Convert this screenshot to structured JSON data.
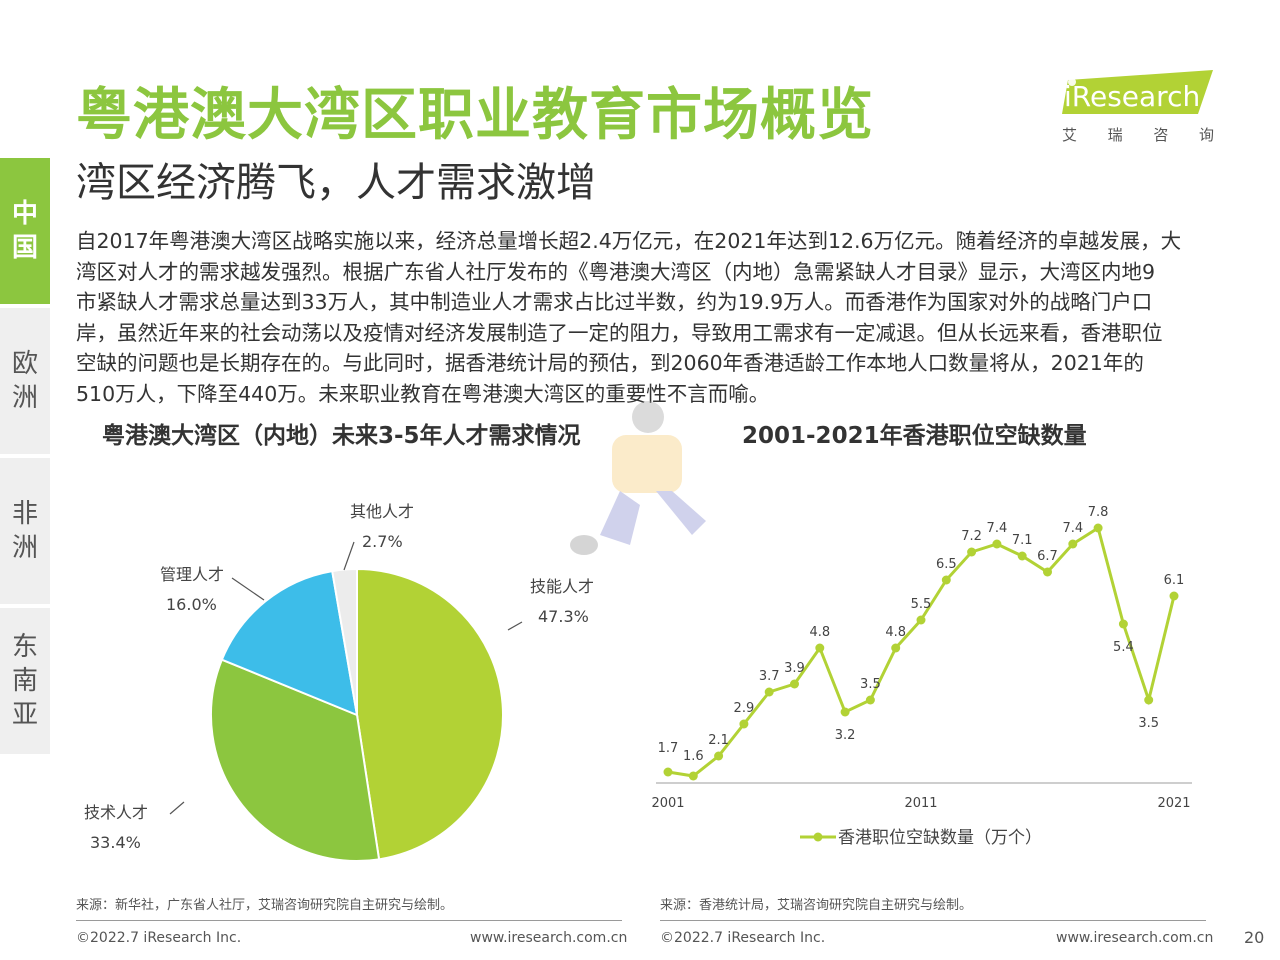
{
  "header": {
    "title": "粤港澳大湾区职业教育市场概览",
    "subtitle": "湾区经济腾飞，人才需求激增",
    "logo_text": "iResearch",
    "logo_cn": [
      "艾",
      "瑞",
      "咨",
      "询"
    ]
  },
  "sidebar": {
    "tabs": [
      {
        "label": [
          "中",
          "国"
        ],
        "active": true
      },
      {
        "label": [
          "欧",
          "洲"
        ],
        "active": false
      },
      {
        "label": [
          "非",
          "洲"
        ],
        "active": false
      },
      {
        "label": [
          "东",
          "南",
          "亚"
        ],
        "active": false
      }
    ]
  },
  "body_lines": [
    "自2017年粤港澳大湾区战略实施以来，经济总量增长超2.4万亿元，在2021年达到12.6万亿元。随着经济的卓越发展，大",
    "湾区对人才的需求越发强烈。根据广东省人社厅发布的《粤港澳大湾区（内地）急需紧缺人才目录》显示，大湾区内地9",
    "市紧缺人才需求总量达到33万人，其中制造业人才需求占比过半数，约为19.9万人。而香港作为国家对外的战略门户口",
    "岸，虽然近年来的社会动荡以及疫情对经济发展制造了一定的阻力，导致用工需求有一定减退。但从长远来看，香港职位",
    "空缺的问题也是长期存在的。与此同时，据香港统计局的预估，到2060年香港适龄工作本地人口数量将从，2021年的",
    "510万人，下降至440万。未来职业教育在粤港澳大湾区的重要性不言而喻。"
  ],
  "chart_data": [
    {
      "type": "pie",
      "title": "粤港澳大湾区（内地）未来3-5年人才需求情况",
      "categories": [
        "技能人才",
        "技术人才",
        "管理人才",
        "其他人才"
      ],
      "values": [
        47.3,
        33.4,
        16.0,
        2.7
      ],
      "value_labels": [
        "47.3%",
        "33.4%",
        "16.0%",
        "2.7%"
      ],
      "colors": [
        "#b2d235",
        "#8cc63f",
        "#3dbde9",
        "#ececec"
      ],
      "source": "来源：新华社，广东省人社厅，艾瑞咨询研究院自主研究与绘制。"
    },
    {
      "type": "line",
      "title": "2001-2021年香港职位空缺数量",
      "x": [
        2001,
        2002,
        2003,
        2004,
        2005,
        2006,
        2007,
        2008,
        2009,
        2010,
        2011,
        2012,
        2013,
        2014,
        2015,
        2016,
        2017,
        2018,
        2019,
        2020,
        2021
      ],
      "x_tick_labels": [
        "2001",
        "2011",
        "2021"
      ],
      "series": [
        {
          "name": "香港职位空缺数量（万个）",
          "values": [
            1.7,
            1.6,
            2.1,
            2.9,
            3.7,
            3.9,
            4.8,
            3.2,
            3.5,
            4.8,
            5.5,
            6.5,
            7.2,
            7.4,
            7.1,
            6.7,
            7.4,
            7.8,
            5.4,
            3.5,
            6.1
          ],
          "labels": [
            "1.7",
            "1.6",
            "2.1",
            "2.9",
            "3.7",
            "3.9",
            "4.8",
            "3.2",
            "3.5",
            "4.8",
            "5.5",
            "6.5",
            "7.2",
            "7.4",
            "7.1",
            "6.7",
            "7.4",
            "7.8",
            "5.4",
            "3.5",
            "6.1"
          ],
          "color": "#b2d235"
        }
      ],
      "source": "来源：香港统计局，艾瑞咨询研究院自主研究与绘制。"
    }
  ],
  "footer": {
    "copyright_left": "©2022.7 iResearch Inc.",
    "url_left": "www.iresearch.com.cn",
    "copyright_right": "©2022.7 iResearch Inc.",
    "url_right": "www.iresearch.com.cn",
    "page_number": "20"
  }
}
